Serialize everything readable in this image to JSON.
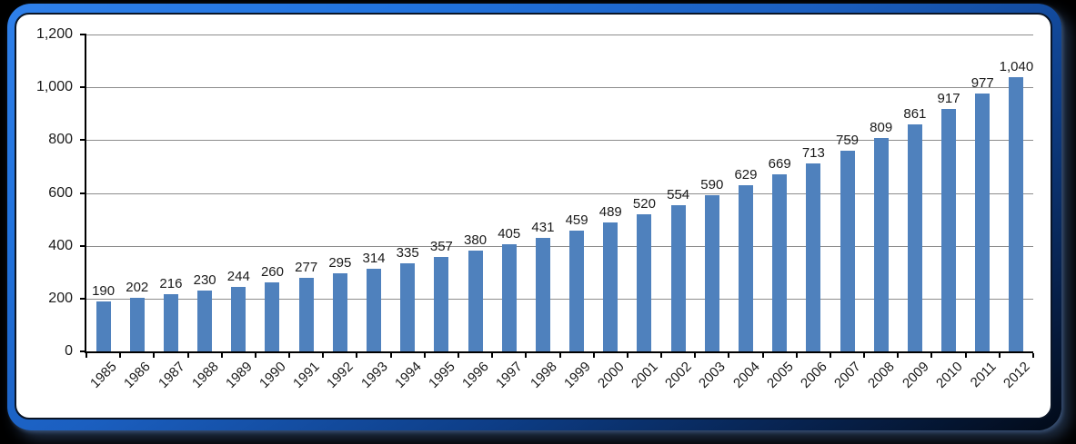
{
  "window": {
    "background": "#000000",
    "frame_gradient_top": "#2F80EA",
    "frame_gradient_bottom": "#020A18",
    "panel_background": "#FFFFFF",
    "panel_border": "#0A1526"
  },
  "chart_data": {
    "type": "bar",
    "title": "",
    "xlabel": "",
    "ylabel": "",
    "legend": "none",
    "grid": "horizontal",
    "x_label_rotation": 45,
    "categories": [
      "1985",
      "1986",
      "1987",
      "1988",
      "1989",
      "1990",
      "1991",
      "1992",
      "1993",
      "1994",
      "1995",
      "1996",
      "1997",
      "1998",
      "1999",
      "2000",
      "2001",
      "2002",
      "2003",
      "2004",
      "2005",
      "2006",
      "2007",
      "2008",
      "2009",
      "2010",
      "2011",
      "2012"
    ],
    "values": [
      190,
      202,
      216,
      230,
      244,
      260,
      277,
      295,
      314,
      335,
      357,
      380,
      405,
      431,
      459,
      489,
      520,
      554,
      590,
      629,
      669,
      713,
      759,
      809,
      861,
      917,
      977,
      1040
    ],
    "value_labels": [
      "190",
      "202",
      "216",
      "230",
      "244",
      "260",
      "277",
      "295",
      "314",
      "335",
      "357",
      "380",
      "405",
      "431",
      "459",
      "489",
      "520",
      "554",
      "590",
      "629",
      "669",
      "713",
      "759",
      "809",
      "861",
      "917",
      "977",
      "1,040"
    ],
    "ylim": [
      0,
      1200
    ],
    "ytick_interval": 200,
    "ytick_values": [
      0,
      200,
      400,
      600,
      800,
      1000,
      1200
    ],
    "ytick_labels": [
      "0",
      "200",
      "400",
      "600",
      "800",
      "1,000",
      "1,200"
    ],
    "series_color": "#4F81BD",
    "gridline_color": "#8C8C8C",
    "axis_color": "#000000",
    "text_color": "#1A1A1A"
  }
}
